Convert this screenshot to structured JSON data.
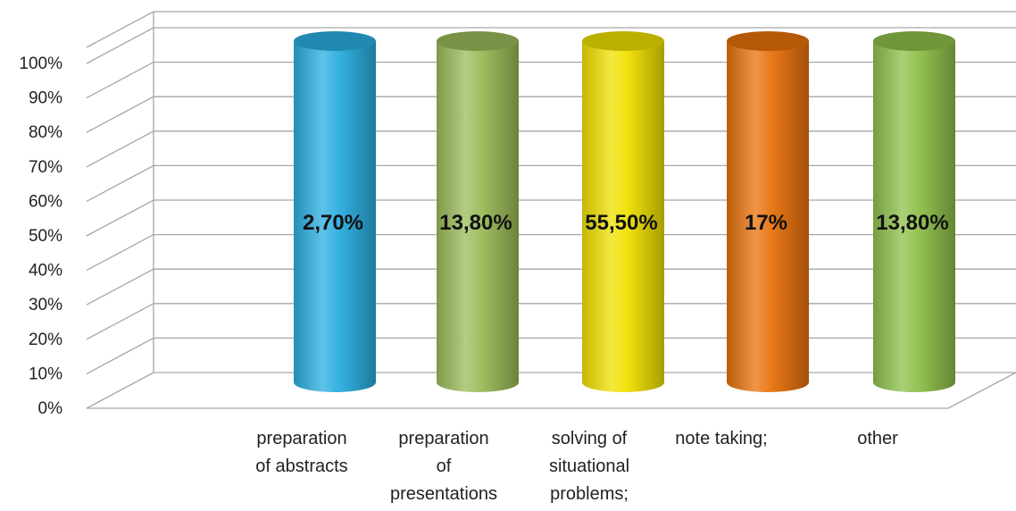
{
  "chart_data": {
    "type": "bar",
    "style": "3d-cylinder",
    "categories": [
      [
        "preparation",
        "of abstracts"
      ],
      [
        "preparation",
        "of",
        "presentations"
      ],
      [
        "solving of",
        "situational",
        "problems;"
      ],
      [
        "note taking;"
      ],
      [
        "other"
      ]
    ],
    "values": [
      2.7,
      13.8,
      55.5,
      17,
      13.8
    ],
    "data_labels": [
      "2,70%",
      "13,80%",
      "55,50%",
      "17%",
      "13,80%"
    ],
    "bar_fill_fraction": [
      1,
      1,
      1,
      1,
      1
    ],
    "colors": [
      "#2aaee0",
      "#9bbb59",
      "#f0e000",
      "#e8720c",
      "#8fc04a"
    ],
    "yticks": [
      "0%",
      "10%",
      "20%",
      "30%",
      "40%",
      "50%",
      "60%",
      "70%",
      "80%",
      "90%",
      "100%"
    ],
    "ylim": [
      0,
      100
    ],
    "grid": true,
    "legend": "none",
    "title": "",
    "xlabel": "",
    "ylabel": ""
  }
}
